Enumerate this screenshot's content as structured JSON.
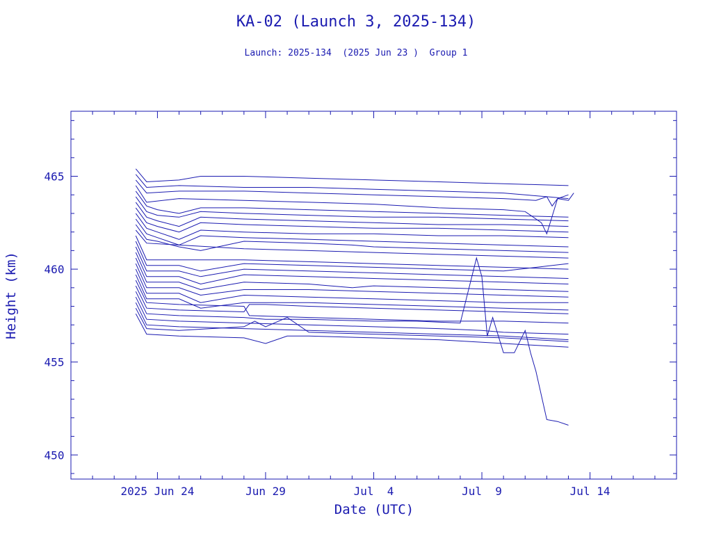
{
  "chart_data": {
    "type": "line",
    "title": "KA-02 (Launch 3, 2025-134)",
    "subtitle": "Launch: 2025-134  (2025 Jun 23 )  Group 1",
    "xlabel": "Date (UTC)",
    "ylabel": "Height (km)",
    "x_ticklabels": [
      {
        "date": "2025-06-24",
        "label": "2025 Jun 24"
      },
      {
        "date": "2025-06-29",
        "label": "Jun 29"
      },
      {
        "date": "2025-07-04",
        "label": "Jul  4"
      },
      {
        "date": "2025-07-09",
        "label": "Jul  9"
      },
      {
        "date": "2025-07-14",
        "label": "Jul 14"
      }
    ],
    "y_ticklabels": [
      "450",
      "455",
      "460",
      "465"
    ],
    "y_ticks": [
      450,
      455,
      460,
      465
    ],
    "xlim": [
      "2025-06-20",
      "2025-07-18"
    ],
    "ylim": [
      448.7,
      468.5
    ],
    "color": "#1a1ab0",
    "grid": false,
    "series": [
      {
        "x": [
          "2025-06-23",
          "2025-06-23T12:00",
          "2025-06-25",
          "2025-06-26",
          "2025-06-28",
          "2025-07-01",
          "2025-07-04",
          "2025-07-07",
          "2025-07-10",
          "2025-07-13"
        ],
        "y": [
          465.4,
          464.7,
          464.8,
          465.0,
          465.0,
          464.9,
          464.8,
          464.7,
          464.6,
          464.5
        ]
      },
      {
        "x": [
          "2025-06-23",
          "2025-06-23T12:00",
          "2025-06-25",
          "2025-06-28",
          "2025-07-01",
          "2025-07-04",
          "2025-07-07",
          "2025-07-10",
          "2025-07-12",
          "2025-07-13"
        ],
        "y": [
          465.1,
          464.4,
          464.5,
          464.4,
          464.4,
          464.3,
          464.2,
          464.1,
          463.9,
          463.8
        ]
      },
      {
        "x": [
          "2025-06-23",
          "2025-06-23T12:00",
          "2025-06-25",
          "2025-06-28",
          "2025-07-01",
          "2025-07-04",
          "2025-07-07",
          "2025-07-10",
          "2025-07-11T12:00",
          "2025-07-12",
          "2025-07-12T06:00",
          "2025-07-12T12:00",
          "2025-07-13",
          "2025-07-13T06:00"
        ],
        "y": [
          464.8,
          464.1,
          464.2,
          464.2,
          464.1,
          464.0,
          463.9,
          463.8,
          463.7,
          463.9,
          463.4,
          463.8,
          463.7,
          464.1
        ]
      },
      {
        "x": [
          "2025-06-23",
          "2025-06-23T12:00",
          "2025-06-25",
          "2025-06-28",
          "2025-07-01",
          "2025-07-04",
          "2025-07-07",
          "2025-07-10",
          "2025-07-11",
          "2025-07-11T18:00",
          "2025-07-12",
          "2025-07-12T12:00",
          "2025-07-13"
        ],
        "y": [
          464.5,
          463.6,
          463.8,
          463.7,
          463.6,
          463.5,
          463.3,
          463.2,
          463.1,
          462.5,
          461.9,
          463.8,
          464.0
        ]
      },
      {
        "x": [
          "2025-06-23",
          "2025-06-23T12:00",
          "2025-06-24",
          "2025-06-25",
          "2025-06-26",
          "2025-06-28",
          "2025-07-01",
          "2025-07-04",
          "2025-07-07",
          "2025-07-10",
          "2025-07-13"
        ],
        "y": [
          464.2,
          463.4,
          463.2,
          463.0,
          463.3,
          463.3,
          463.2,
          463.1,
          463.0,
          462.9,
          462.8
        ]
      },
      {
        "x": [
          "2025-06-23",
          "2025-06-23T12:00",
          "2025-06-24",
          "2025-06-25",
          "2025-06-26",
          "2025-06-28",
          "2025-07-01",
          "2025-07-04",
          "2025-07-07",
          "2025-07-10",
          "2025-07-13"
        ],
        "y": [
          463.9,
          463.1,
          462.9,
          462.8,
          463.1,
          463.0,
          462.9,
          462.8,
          462.8,
          462.7,
          462.6
        ]
      },
      {
        "x": [
          "2025-06-23",
          "2025-06-23T12:00",
          "2025-06-24",
          "2025-06-25",
          "2025-06-26",
          "2025-06-28",
          "2025-07-01",
          "2025-07-04",
          "2025-07-07",
          "2025-07-10",
          "2025-07-13"
        ],
        "y": [
          463.6,
          462.8,
          462.6,
          462.3,
          462.8,
          462.7,
          462.6,
          462.5,
          462.4,
          462.4,
          462.3
        ]
      },
      {
        "x": [
          "2025-06-23",
          "2025-06-23T12:00",
          "2025-06-24",
          "2025-06-25",
          "2025-06-26",
          "2025-06-28",
          "2025-07-01",
          "2025-07-04",
          "2025-07-07",
          "2025-07-10",
          "2025-07-13"
        ],
        "y": [
          463.3,
          462.5,
          462.3,
          462.0,
          462.5,
          462.4,
          462.3,
          462.2,
          462.2,
          462.1,
          462.0
        ]
      },
      {
        "x": [
          "2025-06-23",
          "2025-06-23T12:00",
          "2025-06-24",
          "2025-06-25",
          "2025-06-26",
          "2025-06-28",
          "2025-07-01",
          "2025-07-04",
          "2025-07-07",
          "2025-07-10",
          "2025-07-13"
        ],
        "y": [
          463.0,
          462.2,
          462.0,
          461.6,
          462.1,
          462.0,
          461.9,
          461.9,
          461.8,
          461.8,
          461.7
        ]
      },
      {
        "x": [
          "2025-06-23",
          "2025-06-23T12:00",
          "2025-06-24",
          "2025-06-25",
          "2025-06-26",
          "2025-06-28",
          "2025-07-01",
          "2025-07-04",
          "2025-07-07",
          "2025-07-10",
          "2025-07-13"
        ],
        "y": [
          462.7,
          461.9,
          461.7,
          461.3,
          461.8,
          461.7,
          461.6,
          461.5,
          461.4,
          461.3,
          461.2
        ]
      },
      {
        "x": [
          "2025-06-23",
          "2025-06-23T12:00",
          "2025-06-24",
          "2025-06-25",
          "2025-06-26",
          "2025-06-28",
          "2025-07-01",
          "2025-07-03",
          "2025-07-04",
          "2025-07-07",
          "2025-07-10",
          "2025-07-13"
        ],
        "y": [
          462.4,
          461.6,
          461.5,
          461.2,
          461.0,
          461.5,
          461.4,
          461.3,
          461.2,
          461.1,
          461.0,
          460.9
        ]
      },
      {
        "x": [
          "2025-06-23",
          "2025-06-23T12:00",
          "2025-06-25",
          "2025-06-28",
          "2025-07-01",
          "2025-07-04",
          "2025-07-07",
          "2025-07-10",
          "2025-07-13"
        ],
        "y": [
          462.1,
          461.4,
          461.3,
          461.1,
          461.0,
          460.9,
          460.8,
          460.7,
          460.6
        ]
      },
      {
        "x": [
          "2025-06-23",
          "2025-06-23T12:00",
          "2025-06-25",
          "2025-06-28",
          "2025-07-01",
          "2025-07-04",
          "2025-07-07",
          "2025-07-10",
          "2025-07-13"
        ],
        "y": [
          461.8,
          460.5,
          460.5,
          460.5,
          460.4,
          460.3,
          460.2,
          460.1,
          460.0
        ]
      },
      {
        "x": [
          "2025-06-23",
          "2025-06-23T12:00",
          "2025-06-25",
          "2025-06-26",
          "2025-06-28",
          "2025-07-01",
          "2025-07-04",
          "2025-07-07",
          "2025-07-10",
          "2025-07-13"
        ],
        "y": [
          461.5,
          460.2,
          460.2,
          459.9,
          460.3,
          460.2,
          460.1,
          460.0,
          459.9,
          460.3
        ]
      },
      {
        "x": [
          "2025-06-23",
          "2025-06-23T12:00",
          "2025-06-25",
          "2025-06-26",
          "2025-06-28",
          "2025-07-01",
          "2025-07-04",
          "2025-07-07",
          "2025-07-10",
          "2025-07-13"
        ],
        "y": [
          461.2,
          459.9,
          459.9,
          459.6,
          460.0,
          459.9,
          459.8,
          459.7,
          459.6,
          459.5
        ]
      },
      {
        "x": [
          "2025-06-23",
          "2025-06-23T12:00",
          "2025-06-25",
          "2025-06-26",
          "2025-06-28",
          "2025-07-01",
          "2025-07-04",
          "2025-07-07",
          "2025-07-10",
          "2025-07-13"
        ],
        "y": [
          460.9,
          459.6,
          459.6,
          459.2,
          459.7,
          459.6,
          459.5,
          459.4,
          459.3,
          459.2
        ]
      },
      {
        "x": [
          "2025-06-23",
          "2025-06-23T12:00",
          "2025-06-25",
          "2025-06-26",
          "2025-06-28",
          "2025-07-01",
          "2025-07-03",
          "2025-07-04",
          "2025-07-07",
          "2025-07-10",
          "2025-07-13"
        ],
        "y": [
          460.6,
          459.3,
          459.3,
          458.9,
          459.3,
          459.2,
          459.0,
          459.1,
          459.0,
          458.9,
          458.8
        ]
      },
      {
        "x": [
          "2025-06-23",
          "2025-06-23T12:00",
          "2025-06-25",
          "2025-06-26",
          "2025-06-28",
          "2025-07-01",
          "2025-07-04",
          "2025-07-07",
          "2025-07-10",
          "2025-07-13"
        ],
        "y": [
          460.3,
          459.0,
          459.0,
          458.6,
          458.9,
          458.9,
          458.8,
          458.7,
          458.6,
          458.5
        ]
      },
      {
        "x": [
          "2025-06-23",
          "2025-06-23T12:00",
          "2025-06-25",
          "2025-06-26",
          "2025-06-28",
          "2025-07-01",
          "2025-07-04",
          "2025-07-07",
          "2025-07-10",
          "2025-07-13"
        ],
        "y": [
          460.0,
          458.7,
          458.7,
          458.2,
          458.6,
          458.5,
          458.4,
          458.3,
          458.2,
          458.2
        ]
      },
      {
        "x": [
          "2025-06-23",
          "2025-06-23T12:00",
          "2025-06-25",
          "2025-06-26",
          "2025-06-28",
          "2025-07-01",
          "2025-07-04",
          "2025-07-07",
          "2025-07-10",
          "2025-07-13"
        ],
        "y": [
          459.7,
          458.4,
          458.4,
          457.9,
          458.2,
          458.2,
          458.1,
          458.0,
          457.9,
          457.8
        ]
      },
      {
        "x": [
          "2025-06-23",
          "2025-06-23T12:00",
          "2025-06-25",
          "2025-06-28",
          "2025-06-28T06:00",
          "2025-07-01",
          "2025-07-04",
          "2025-07-07",
          "2025-07-10",
          "2025-07-13"
        ],
        "y": [
          459.4,
          458.2,
          458.1,
          458.0,
          457.5,
          457.4,
          457.3,
          457.2,
          457.2,
          457.1
        ]
      },
      {
        "x": [
          "2025-06-23",
          "2025-06-23T12:00",
          "2025-06-25",
          "2025-06-28",
          "2025-06-28T06:00",
          "2025-06-29",
          "2025-07-01",
          "2025-07-04",
          "2025-07-07",
          "2025-07-10",
          "2025-07-13"
        ],
        "y": [
          459.1,
          457.9,
          457.8,
          457.7,
          458.1,
          458.1,
          458.0,
          457.9,
          457.8,
          457.7,
          457.6
        ]
      },
      {
        "x": [
          "2025-06-23",
          "2025-06-23T12:00",
          "2025-06-25",
          "2025-06-28",
          "2025-06-29",
          "2025-07-01",
          "2025-07-04",
          "2025-07-06",
          "2025-07-08",
          "2025-07-08T18:00",
          "2025-07-09",
          "2025-07-09T06:00",
          "2025-07-09T12:00",
          "2025-07-10",
          "2025-07-10T12:00",
          "2025-07-11",
          "2025-07-11T06:00",
          "2025-07-11T12:00",
          "2025-07-12",
          "2025-07-12T12:00",
          "2025-07-13"
        ],
        "y": [
          458.8,
          457.6,
          457.5,
          457.4,
          457.3,
          457.3,
          457.2,
          457.2,
          457.1,
          460.6,
          459.6,
          456.4,
          457.4,
          455.5,
          455.5,
          456.7,
          455.5,
          454.5,
          451.9,
          451.8,
          451.6
        ]
      },
      {
        "x": [
          "2025-06-23",
          "2025-06-23T12:00",
          "2025-06-25",
          "2025-06-28",
          "2025-07-01",
          "2025-07-04",
          "2025-07-07",
          "2025-07-09",
          "2025-07-10",
          "2025-07-13"
        ],
        "y": [
          458.5,
          457.3,
          457.2,
          457.1,
          457.0,
          456.9,
          456.8,
          456.7,
          456.6,
          456.5
        ]
      },
      {
        "x": [
          "2025-06-23",
          "2025-06-23T12:00",
          "2025-06-25",
          "2025-06-28",
          "2025-07-01",
          "2025-07-04",
          "2025-07-07",
          "2025-07-10",
          "2025-07-13"
        ],
        "y": [
          458.2,
          457.0,
          456.9,
          456.8,
          456.7,
          456.6,
          456.5,
          456.4,
          456.2
        ]
      },
      {
        "x": [
          "2025-06-23",
          "2025-06-23T12:00",
          "2025-06-25",
          "2025-06-28",
          "2025-06-28T12:00",
          "2025-06-29",
          "2025-06-30",
          "2025-07-01",
          "2025-07-04",
          "2025-07-07",
          "2025-07-10",
          "2025-07-13"
        ],
        "y": [
          457.9,
          456.8,
          456.7,
          456.9,
          457.2,
          456.9,
          457.4,
          456.6,
          456.5,
          456.4,
          456.3,
          456.1
        ]
      },
      {
        "x": [
          "2025-06-23",
          "2025-06-23T12:00",
          "2025-06-25",
          "2025-06-28",
          "2025-06-29",
          "2025-06-30",
          "2025-07-01",
          "2025-07-04",
          "2025-07-07",
          "2025-07-10",
          "2025-07-13"
        ],
        "y": [
          457.6,
          456.5,
          456.4,
          456.3,
          456.0,
          456.4,
          456.4,
          456.3,
          456.2,
          456.0,
          455.8
        ]
      }
    ]
  }
}
